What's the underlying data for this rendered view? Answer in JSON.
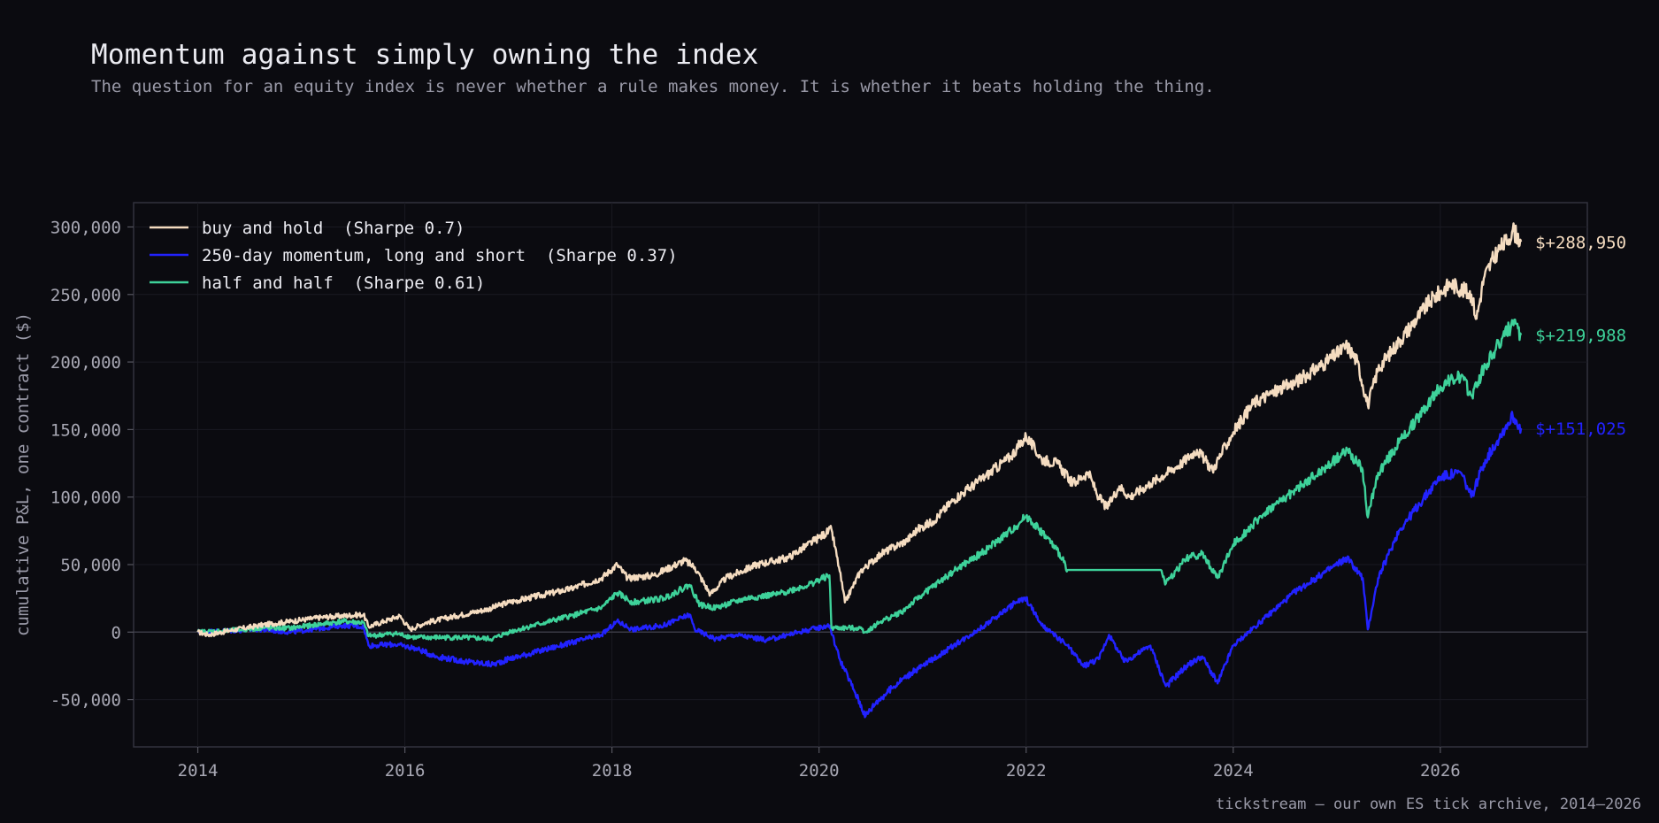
{
  "header": {
    "title": "Momentum against simply owning the index",
    "subtitle": "The question for an equity index is never whether a rule makes money. It is whether it beats holding the thing."
  },
  "footer": {
    "source": "tickstream — our own ES tick archive, 2014–2026"
  },
  "chart_data": {
    "type": "line",
    "title": "Momentum against simply owning the index",
    "xlabel": "",
    "ylabel": "cumulative P&L, one contract ($)",
    "xlim": [
      2013.38,
      2027.42
    ],
    "ylim": [
      -85000,
      318000
    ],
    "x_ticks": [
      2014,
      2016,
      2018,
      2020,
      2022,
      2024,
      2026
    ],
    "x_tick_labels": [
      "2014",
      "2016",
      "2018",
      "2020",
      "2022",
      "2024",
      "2026"
    ],
    "y_ticks": [
      -50000,
      0,
      50000,
      100000,
      150000,
      200000,
      250000,
      300000
    ],
    "y_tick_labels": [
      "-50,000",
      "0",
      "50,000",
      "100,000",
      "150,000",
      "200,000",
      "250,000",
      "300,000"
    ],
    "grid": true,
    "zero_line": true,
    "legend_position": "top-left",
    "series": [
      {
        "name": "buy and hold",
        "legend_label": "buy and hold  (Sharpe 0.7)",
        "color": "#f5dcc0",
        "end_label": "$+288,950",
        "points": [
          [
            2014.0,
            0
          ],
          [
            2014.1,
            -2000
          ],
          [
            2014.3,
            1000
          ],
          [
            2014.6,
            5000
          ],
          [
            2014.9,
            8000
          ],
          [
            2015.2,
            11000
          ],
          [
            2015.4,
            12000
          ],
          [
            2015.6,
            13000
          ],
          [
            2015.65,
            4000
          ],
          [
            2015.8,
            8000
          ],
          [
            2015.95,
            12000
          ],
          [
            2016.05,
            2000
          ],
          [
            2016.2,
            7000
          ],
          [
            2016.5,
            12000
          ],
          [
            2016.8,
            17000
          ],
          [
            2017.0,
            22000
          ],
          [
            2017.3,
            27000
          ],
          [
            2017.6,
            32000
          ],
          [
            2017.9,
            40000
          ],
          [
            2018.05,
            50000
          ],
          [
            2018.15,
            40000
          ],
          [
            2018.4,
            42000
          ],
          [
            2018.7,
            53000
          ],
          [
            2018.8,
            48000
          ],
          [
            2018.95,
            28000
          ],
          [
            2019.1,
            40000
          ],
          [
            2019.4,
            50000
          ],
          [
            2019.7,
            55000
          ],
          [
            2020.0,
            70000
          ],
          [
            2020.12,
            76000
          ],
          [
            2020.2,
            45000
          ],
          [
            2020.25,
            22000
          ],
          [
            2020.4,
            45000
          ],
          [
            2020.6,
            58000
          ],
          [
            2020.85,
            68000
          ],
          [
            2020.95,
            76000
          ],
          [
            2021.1,
            82000
          ],
          [
            2021.3,
            98000
          ],
          [
            2021.6,
            115000
          ],
          [
            2021.85,
            130000
          ],
          [
            2022.0,
            145000
          ],
          [
            2022.15,
            128000
          ],
          [
            2022.3,
            125000
          ],
          [
            2022.45,
            110000
          ],
          [
            2022.6,
            118000
          ],
          [
            2022.7,
            100000
          ],
          [
            2022.78,
            92000
          ],
          [
            2022.9,
            108000
          ],
          [
            2023.0,
            100000
          ],
          [
            2023.2,
            110000
          ],
          [
            2023.5,
            125000
          ],
          [
            2023.65,
            135000
          ],
          [
            2023.8,
            120000
          ],
          [
            2024.0,
            148000
          ],
          [
            2024.2,
            170000
          ],
          [
            2024.4,
            178000
          ],
          [
            2024.6,
            185000
          ],
          [
            2024.9,
            200000
          ],
          [
            2025.1,
            212000
          ],
          [
            2025.2,
            200000
          ],
          [
            2025.3,
            168000
          ],
          [
            2025.4,
            195000
          ],
          [
            2025.6,
            215000
          ],
          [
            2025.9,
            245000
          ],
          [
            2026.1,
            258000
          ],
          [
            2026.3,
            250000
          ],
          [
            2026.35,
            232000
          ],
          [
            2026.42,
            262000
          ],
          [
            2026.55,
            282000
          ],
          [
            2026.65,
            290000
          ],
          [
            2026.7,
            298000
          ],
          [
            2026.78,
            288950
          ]
        ]
      },
      {
        "name": "250-day momentum, long and short",
        "legend_label": "250-day momentum, long and short  (Sharpe 0.37)",
        "color": "#2222ff",
        "end_label": "$+151,025",
        "points": [
          [
            2014.0,
            0
          ],
          [
            2014.3,
            1000
          ],
          [
            2014.6,
            2000
          ],
          [
            2014.9,
            0
          ],
          [
            2015.2,
            3000
          ],
          [
            2015.4,
            5000
          ],
          [
            2015.6,
            4000
          ],
          [
            2015.65,
            -10000
          ],
          [
            2015.9,
            -9000
          ],
          [
            2016.1,
            -12000
          ],
          [
            2016.3,
            -18000
          ],
          [
            2016.6,
            -22000
          ],
          [
            2016.85,
            -24000
          ],
          [
            2017.0,
            -20000
          ],
          [
            2017.3,
            -14000
          ],
          [
            2017.6,
            -8000
          ],
          [
            2017.9,
            -2000
          ],
          [
            2018.05,
            8000
          ],
          [
            2018.2,
            2000
          ],
          [
            2018.5,
            5000
          ],
          [
            2018.75,
            13000
          ],
          [
            2018.8,
            2000
          ],
          [
            2019.0,
            -5000
          ],
          [
            2019.2,
            -2000
          ],
          [
            2019.5,
            -6000
          ],
          [
            2019.8,
            0
          ],
          [
            2020.1,
            5000
          ],
          [
            2020.2,
            -20000
          ],
          [
            2020.35,
            -45000
          ],
          [
            2020.45,
            -62000
          ],
          [
            2020.55,
            -52000
          ],
          [
            2020.8,
            -35000
          ],
          [
            2021.0,
            -25000
          ],
          [
            2021.3,
            -10000
          ],
          [
            2021.6,
            5000
          ],
          [
            2021.9,
            22000
          ],
          [
            2022.0,
            25000
          ],
          [
            2022.15,
            5000
          ],
          [
            2022.4,
            -10000
          ],
          [
            2022.55,
            -25000
          ],
          [
            2022.7,
            -20000
          ],
          [
            2022.8,
            -2000
          ],
          [
            2022.95,
            -22000
          ],
          [
            2023.2,
            -10000
          ],
          [
            2023.35,
            -40000
          ],
          [
            2023.55,
            -25000
          ],
          [
            2023.7,
            -18000
          ],
          [
            2023.85,
            -38000
          ],
          [
            2024.0,
            -10000
          ],
          [
            2024.3,
            10000
          ],
          [
            2024.6,
            30000
          ],
          [
            2024.9,
            45000
          ],
          [
            2025.1,
            55000
          ],
          [
            2025.25,
            40000
          ],
          [
            2025.3,
            2000
          ],
          [
            2025.4,
            40000
          ],
          [
            2025.6,
            75000
          ],
          [
            2025.8,
            95000
          ],
          [
            2026.0,
            115000
          ],
          [
            2026.2,
            118000
          ],
          [
            2026.3,
            100000
          ],
          [
            2026.42,
            125000
          ],
          [
            2026.6,
            148000
          ],
          [
            2026.7,
            160000
          ],
          [
            2026.78,
            151025
          ]
        ]
      },
      {
        "name": "half and half",
        "legend_label": "half and half  (Sharpe 0.61)",
        "color": "#3ed29a",
        "end_label": "$+219,988",
        "points": [
          [
            2014.0,
            0
          ],
          [
            2014.3,
            1000
          ],
          [
            2014.6,
            3000
          ],
          [
            2014.9,
            3000
          ],
          [
            2015.2,
            6000
          ],
          [
            2015.4,
            8000
          ],
          [
            2015.6,
            7000
          ],
          [
            2015.65,
            -3000
          ],
          [
            2015.9,
            -1000
          ],
          [
            2016.1,
            -4000
          ],
          [
            2016.5,
            -4000
          ],
          [
            2016.85,
            -5000
          ],
          [
            2017.0,
            0
          ],
          [
            2017.3,
            6000
          ],
          [
            2017.6,
            12000
          ],
          [
            2017.9,
            18000
          ],
          [
            2018.05,
            29000
          ],
          [
            2018.2,
            22000
          ],
          [
            2018.5,
            25000
          ],
          [
            2018.75,
            35000
          ],
          [
            2018.85,
            20000
          ],
          [
            2019.0,
            18000
          ],
          [
            2019.3,
            25000
          ],
          [
            2019.6,
            28000
          ],
          [
            2019.9,
            35000
          ],
          [
            2020.1,
            42000
          ],
          [
            2020.12,
            3000
          ],
          [
            2020.4,
            3000
          ],
          [
            2020.45,
            0
          ],
          [
            2020.6,
            8000
          ],
          [
            2020.8,
            15000
          ],
          [
            2021.0,
            28000
          ],
          [
            2021.3,
            45000
          ],
          [
            2021.6,
            60000
          ],
          [
            2021.9,
            78000
          ],
          [
            2022.0,
            86000
          ],
          [
            2022.2,
            70000
          ],
          [
            2022.35,
            55000
          ],
          [
            2022.4,
            46000
          ],
          [
            2023.3,
            46000
          ],
          [
            2023.35,
            36000
          ],
          [
            2023.55,
            55000
          ],
          [
            2023.7,
            58000
          ],
          [
            2023.85,
            40000
          ],
          [
            2024.0,
            65000
          ],
          [
            2024.3,
            88000
          ],
          [
            2024.6,
            105000
          ],
          [
            2024.9,
            122000
          ],
          [
            2025.1,
            135000
          ],
          [
            2025.25,
            120000
          ],
          [
            2025.3,
            85000
          ],
          [
            2025.4,
            118000
          ],
          [
            2025.6,
            140000
          ],
          [
            2025.8,
            160000
          ],
          [
            2026.0,
            182000
          ],
          [
            2026.2,
            190000
          ],
          [
            2026.3,
            175000
          ],
          [
            2026.42,
            195000
          ],
          [
            2026.6,
            218000
          ],
          [
            2026.7,
            228000
          ],
          [
            2026.78,
            219988
          ]
        ]
      }
    ]
  }
}
